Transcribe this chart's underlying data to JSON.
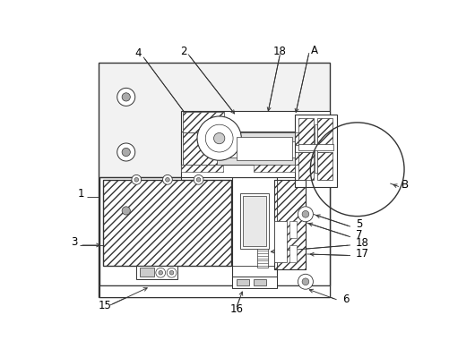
{
  "bg_color": "#ffffff",
  "line_color": "#333333",
  "fig_width": 5.3,
  "fig_height": 3.9,
  "dpi": 100
}
